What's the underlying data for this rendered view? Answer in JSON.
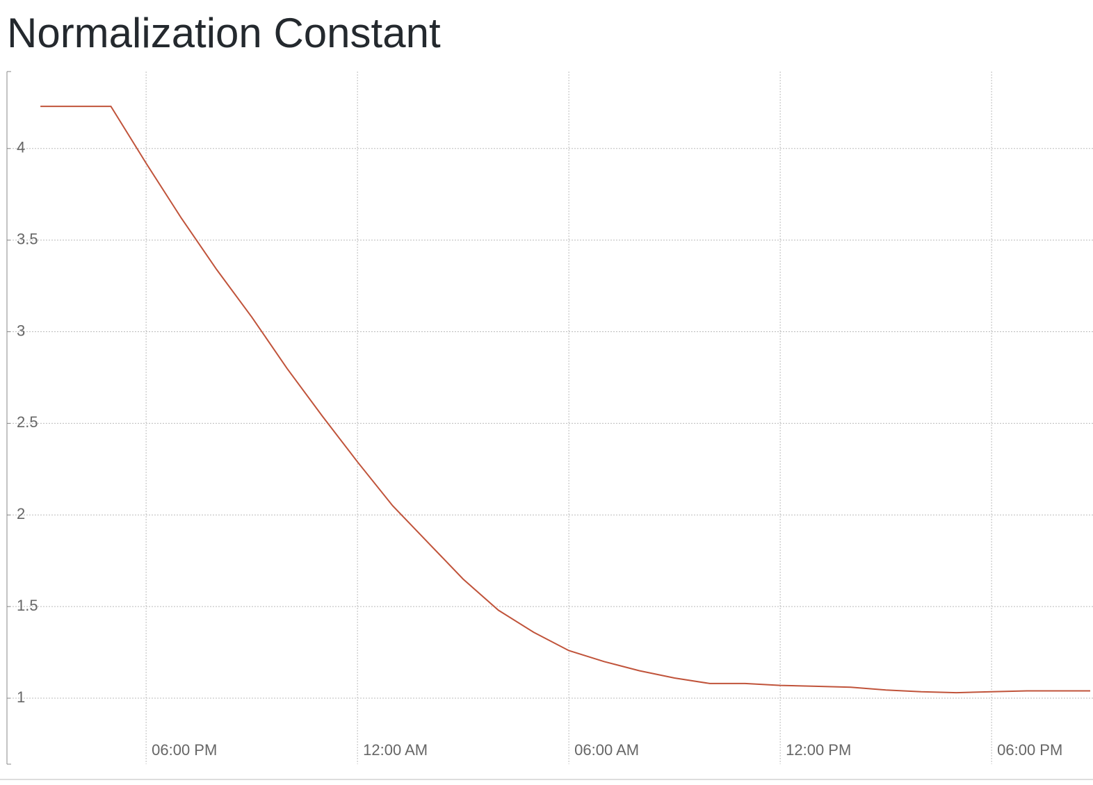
{
  "chart_data": {
    "type": "line",
    "title": "Normalization Constant",
    "x": [
      15,
      16,
      17,
      18,
      19,
      20,
      21,
      22,
      23,
      24,
      25,
      26,
      27,
      28,
      29,
      30,
      31,
      32,
      33,
      34,
      35,
      36,
      37,
      38,
      39,
      40,
      41,
      42,
      43,
      44,
      44.8
    ],
    "series": [
      {
        "color": "#c0533a",
        "values": [
          4.23,
          4.23,
          4.23,
          3.92,
          3.62,
          3.34,
          3.08,
          2.8,
          2.54,
          2.29,
          2.05,
          1.85,
          1.65,
          1.48,
          1.36,
          1.26,
          1.2,
          1.15,
          1.11,
          1.08,
          1.08,
          1.07,
          1.065,
          1.06,
          1.045,
          1.035,
          1.03,
          1.035,
          1.04,
          1.04,
          1.04
        ]
      }
    ],
    "xlim": [
      14.05,
      44.8
    ],
    "xticks": [
      {
        "value": 18,
        "label": "06:00 PM"
      },
      {
        "value": 24,
        "label": "12:00 AM"
      },
      {
        "value": 30,
        "label": "06:00 AM"
      },
      {
        "value": 36,
        "label": "12:00 PM"
      },
      {
        "value": 42,
        "label": "06:00 PM"
      }
    ],
    "ylim": [
      0.64,
      4.42
    ],
    "yticks": [
      1,
      1.5,
      2,
      2.5,
      3,
      3.5,
      4
    ],
    "grid": true
  }
}
